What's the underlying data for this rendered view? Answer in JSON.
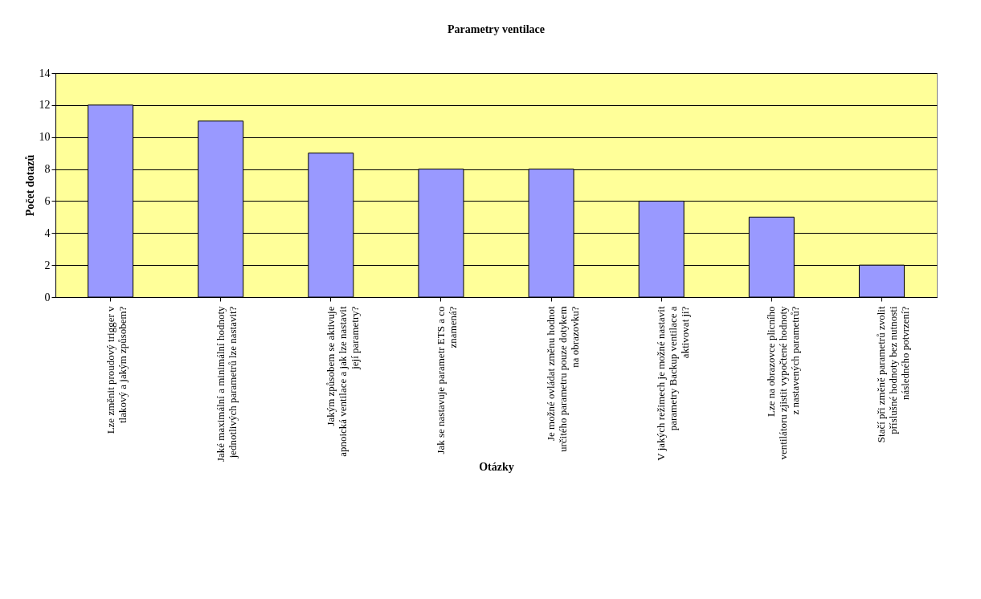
{
  "chart_data": {
    "type": "bar",
    "title": "Parametry ventilace",
    "xlabel": "Otázky",
    "ylabel": "Počet dotazů",
    "categories": [
      "Lze změnit proudový trigger v\ntlakový a jakým způsobem?",
      "Jaké maximální a minimální hodnoty\njednotlivých parametrů lze nastavit?",
      "Jakým způsobem se aktivuje\napnoická ventilace a jak lze nastavit\njejí parametry?",
      "Jak se nastavuje parametr ETS a co\nznamená?",
      "Je možné ovládat  změnu hodnot\nurčitého parametru pouze dotykem\nna obrazovku?",
      "V jakých režimech je možné nastavit\nparametry Backup ventilace a\naktivovat ji?",
      "Lze na  obrazovce plicního\nventilátoru zjistit vypočtené hodnoty\nz nastavených parametrů?",
      "Stačí při změně parametrů zvolit\npříslušné hodnoty bez nutnosti\nnásledného potvrzení?"
    ],
    "values": [
      12,
      11,
      9,
      8,
      8,
      6,
      5,
      2
    ],
    "color": "#9999ff",
    "ylim": [
      0,
      14
    ],
    "yticks": [
      0,
      2,
      4,
      6,
      8,
      10,
      12,
      14
    ],
    "grid": "y"
  }
}
